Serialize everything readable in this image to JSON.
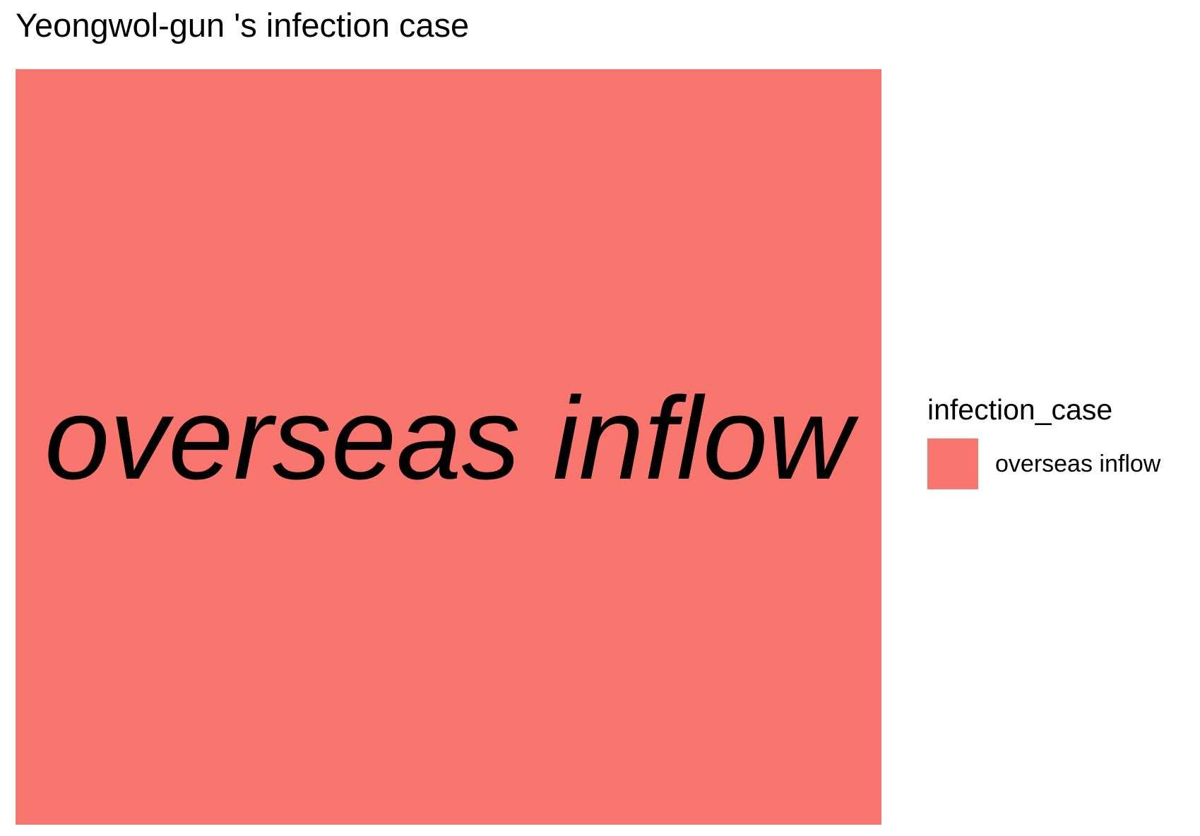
{
  "chart_data": {
    "type": "treemap",
    "title": "Yeongwol-gun 's infection case",
    "legend": {
      "title": "infection_case",
      "placement": "right"
    },
    "series": [
      {
        "name": "overseas inflow",
        "value": 1,
        "share": 1.0,
        "color": "#F8766D"
      }
    ],
    "tile_label_style": "italic"
  }
}
